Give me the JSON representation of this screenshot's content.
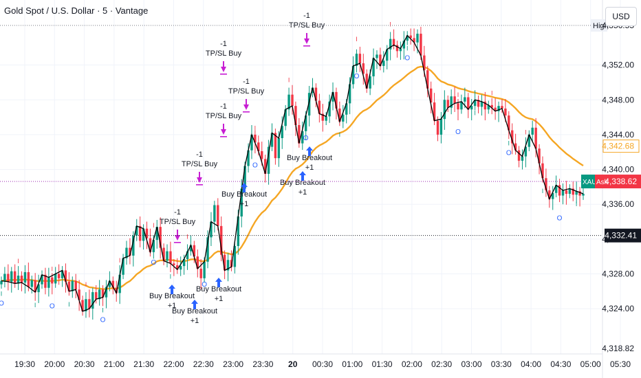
{
  "title": "Gold Spot / U.S. Dollar · 5 · Vantage",
  "currency_button": "USD",
  "colors": {
    "up": "#089981",
    "down": "#f23645",
    "ema": "#f5a623",
    "grid": "#f0f3fa",
    "axis_text": "#131722",
    "marker": "#c71ed3",
    "arrow": "#2962ff"
  },
  "chart_data": {
    "type": "candlestick",
    "y_ticks": [
      "4,324.00",
      "4,328.00",
      "4,332.00",
      "4,336.00",
      "4,340.00",
      "4,344.00",
      "4,348.00",
      "4,352.00"
    ],
    "y_tick_values": [
      4324,
      4328,
      4332,
      4336,
      4340,
      4344,
      4348,
      4352
    ],
    "ylim": [
      4318.8,
      4357.5
    ],
    "x_ticks": [
      "19:30",
      "20:00",
      "20:30",
      "21:00",
      "21:30",
      "22:00",
      "22:30",
      "23:00",
      "23:30",
      "20",
      "00:30",
      "01:00",
      "01:30",
      "02:00",
      "02:30",
      "03:00",
      "03:30",
      "04:00",
      "04:30",
      "05:00",
      "05:30"
    ],
    "x_tick_bold": "20",
    "high": {
      "label": "High",
      "value": "4,356.55",
      "y": 4356.55
    },
    "ema": {
      "label": "4,342.68",
      "y": 4342.68
    },
    "ask": {
      "symbol": "XAU",
      "label": "Ask",
      "value": "4,338.62",
      "y": 4338.62
    },
    "price_line": {
      "label": "4,332.41",
      "y": 4332.41
    },
    "bottom_cut_label": "4,318.82",
    "closes": [
      4327.2,
      4328.0,
      4327.1,
      4328.3,
      4326.9,
      4327.8,
      4327.0,
      4328.2,
      4326.5,
      4327.3,
      4325.9,
      4326.8,
      4327.9,
      4326.4,
      4327.6,
      4326.9,
      4328.0,
      4327.5,
      4328.4,
      4327.1,
      4326.0,
      4327.2,
      4326.2,
      4325.0,
      4323.7,
      4325.1,
      4324.0,
      4325.9,
      4325.1,
      4326.2,
      4325.3,
      4326.5,
      4327.2,
      4326.4,
      4325.8,
      4327.9,
      4329.8,
      4331.0,
      4330.1,
      4332.4,
      4333.5,
      4331.8,
      4333.2,
      4332.1,
      4330.5,
      4331.9,
      4333.4,
      4331.0,
      4329.5,
      4330.6,
      4329.2,
      4329.0,
      4328.5,
      4328.9,
      4329.7,
      4330.6,
      4331.3,
      4330.0,
      4328.6,
      4327.5,
      4329.4,
      4332.2,
      4334.0,
      4335.9,
      4333.5,
      4330.2,
      4328.4,
      4329.6,
      4328.8,
      4331.2,
      4334.6,
      4337.8,
      4340.4,
      4342.2,
      4344.0,
      4343.1,
      4342.1,
      4341.2,
      4339.5,
      4342.6,
      4344.2,
      4341.3,
      4343.6,
      4345.0,
      4346.9,
      4348.6,
      4347.3,
      4345.1,
      4343.0,
      4344.4,
      4346.2,
      4348.8,
      4349.4,
      4347.9,
      4346.4,
      4345.6,
      4346.1,
      4347.8,
      4348.9,
      4347.0,
      4345.5,
      4346.3,
      4347.6,
      4349.8,
      4351.9,
      4353.3,
      4352.2,
      4351.0,
      4349.3,
      4350.7,
      4352.8,
      4353.2,
      4351.9,
      4352.5,
      4353.8,
      4355.0,
      4354.3,
      4353.6,
      4353.9,
      4354.8,
      4355.4,
      4355.1,
      4354.6,
      4355.6,
      4353.1,
      4351.4,
      4349.3,
      4347.7,
      4345.6,
      4344.0,
      4345.8,
      4348.0,
      4347.1,
      4348.4,
      4347.6,
      4346.9,
      4347.8,
      4348.3,
      4346.9,
      4347.3,
      4348.0,
      4347.2,
      4347.8,
      4346.9,
      4347.4,
      4347.1,
      4346.7,
      4347.3,
      4347.0,
      4346.2,
      4344.5,
      4343.0,
      4342.2,
      4341.0,
      4341.5,
      4342.6,
      4344.0,
      4344.8,
      4342.4,
      4340.7,
      4339.0,
      4337.6,
      4336.6,
      4337.3,
      4338.2,
      4337.0,
      4337.6,
      4337.2,
      4337.8,
      4337.1,
      4337.5,
      4337.0,
      4337.2
    ]
  }
}
